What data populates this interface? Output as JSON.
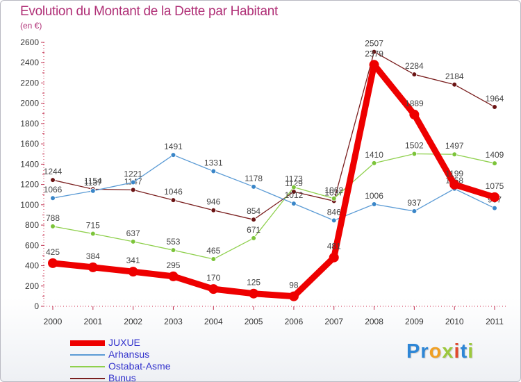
{
  "header": {
    "title": "Evolution du Montant de la Dette par Habitant",
    "subtitle": "(en €)"
  },
  "logo": {
    "letters": [
      "P",
      "r",
      "o",
      "x",
      "i",
      "t",
      "i"
    ],
    "colors": [
      "#2e86d6",
      "#2e86d6",
      "#f0a024",
      "#9cc83c",
      "#e0492f",
      "#2e86d6",
      "#9cc83c"
    ]
  },
  "chart_data": {
    "type": "line",
    "title": "Evolution du Montant de la Dette par Habitant",
    "subtitle": "(en €)",
    "xlabel": "",
    "ylabel": "",
    "categories": [
      "2000",
      "2001",
      "2002",
      "2003",
      "2004",
      "2005",
      "2006",
      "2007",
      "2008",
      "2009",
      "2010",
      "2011"
    ],
    "ylim": [
      0,
      2600
    ],
    "yticks": [
      0,
      200,
      400,
      600,
      800,
      1000,
      1200,
      1400,
      1600,
      1800,
      2000,
      2200,
      2400,
      2600
    ],
    "grid": false,
    "legend_position": "bottom-left",
    "series": [
      {
        "name": "Bunus",
        "color": "#7a1f1f",
        "marker": "#6b1414",
        "values": [
          1244,
          1154,
          1147,
          1046,
          946,
          854,
          1129,
          1037,
          2507,
          2284,
          2184,
          1964
        ]
      },
      {
        "name": "Ostabat-Asme",
        "color": "#8fd04d",
        "marker": "#7cc43a",
        "values": [
          788,
          715,
          637,
          553,
          465,
          671,
          1173,
          1062,
          1410,
          1502,
          1497,
          1409
        ]
      },
      {
        "name": "Arhansus",
        "color": "#5b9bd5",
        "marker": "#3a86c8",
        "values": [
          1066,
          1137,
          1221,
          1491,
          1331,
          1178,
          1012,
          846,
          1006,
          937,
          1158,
          967
        ]
      },
      {
        "name": "JUXUE",
        "color": "#ee0000",
        "marker": "#ee0000",
        "values": [
          425,
          384,
          341,
          295,
          170,
          125,
          98,
          481,
          2379,
          1889,
          1199,
          1075
        ],
        "bold": true
      }
    ],
    "legend": [
      "JUXUE",
      "Arhansus",
      "Ostabat-Asme",
      "Bunus"
    ]
  }
}
